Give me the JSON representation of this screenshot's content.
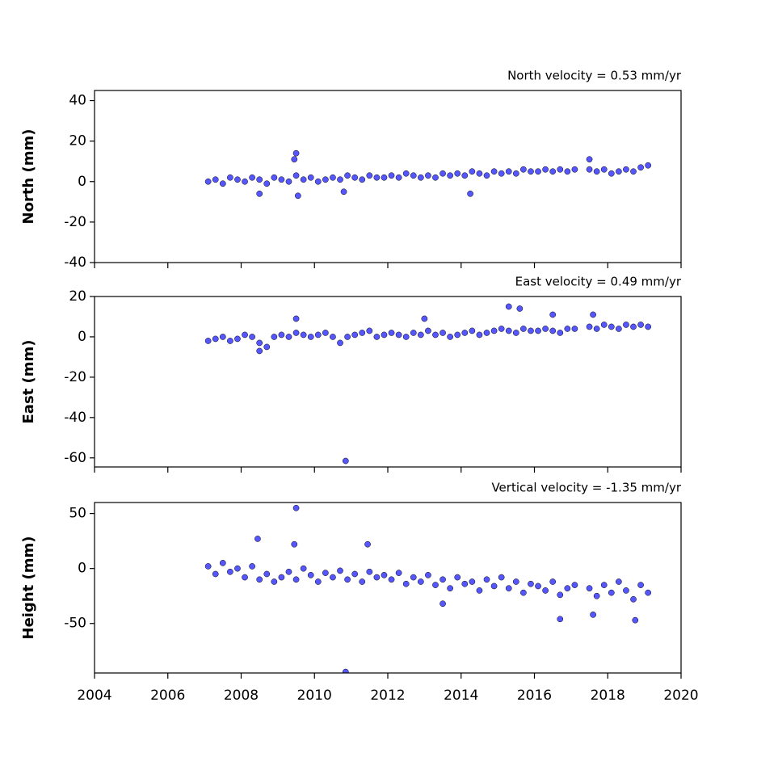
{
  "chart_data": [
    {
      "type": "scatter",
      "annotation": "North velocity = 0.53 mm/yr",
      "y_label": "North (mm)",
      "color": "#4d4dff",
      "x": [
        2007.1,
        2007.3,
        2007.5,
        2007.7,
        2007.9,
        2008.1,
        2008.3,
        2008.5,
        2008.7,
        2008.9,
        2009.1,
        2009.3,
        2009.5,
        2009.7,
        2009.9,
        2010.1,
        2010.3,
        2010.5,
        2010.7,
        2010.9,
        2011.1,
        2011.3,
        2011.5,
        2011.7,
        2011.9,
        2012.1,
        2012.3,
        2012.5,
        2012.7,
        2012.9,
        2013.1,
        2013.3,
        2013.5,
        2013.7,
        2013.9,
        2014.1,
        2014.3,
        2014.5,
        2014.7,
        2014.9,
        2015.1,
        2015.3,
        2015.5,
        2015.7,
        2015.9,
        2016.1,
        2016.3,
        2016.5,
        2016.7,
        2016.9,
        2017.1,
        2017.5,
        2017.7,
        2017.9,
        2018.1,
        2018.3,
        2018.5,
        2018.7,
        2018.9,
        2019.1,
        2009.5,
        2009.45,
        2009.55,
        2008.5,
        2014.25,
        2010.8,
        2017.5
      ],
      "values": [
        0,
        1,
        -1,
        2,
        1,
        0,
        2,
        1,
        -1,
        2,
        1,
        0,
        3,
        1,
        2,
        0,
        1,
        2,
        1,
        3,
        2,
        1,
        3,
        2,
        2,
        3,
        2,
        4,
        3,
        2,
        3,
        2,
        4,
        3,
        4,
        3,
        5,
        4,
        3,
        5,
        4,
        5,
        4,
        6,
        5,
        5,
        6,
        5,
        6,
        5,
        6,
        6,
        5,
        6,
        4,
        5,
        6,
        5,
        7,
        8,
        14,
        11,
        -7,
        -6,
        -6,
        -5,
        11
      ],
      "xlim": [
        2004,
        2020
      ],
      "xticks": [
        2004,
        2006,
        2008,
        2010,
        2012,
        2014,
        2016,
        2018,
        2020
      ],
      "ylim": [
        -40,
        45
      ],
      "yticks": [
        -40,
        -20,
        0,
        20,
        40
      ]
    },
    {
      "type": "scatter",
      "annotation": "East velocity = 0.49 mm/yr",
      "y_label": "East (mm)",
      "color": "#4d4dff",
      "x": [
        2007.1,
        2007.3,
        2007.5,
        2007.7,
        2007.9,
        2008.1,
        2008.3,
        2008.5,
        2008.7,
        2008.9,
        2009.1,
        2009.3,
        2009.5,
        2009.7,
        2009.9,
        2010.1,
        2010.3,
        2010.5,
        2010.7,
        2010.9,
        2011.1,
        2011.3,
        2011.5,
        2011.7,
        2011.9,
        2012.1,
        2012.3,
        2012.5,
        2012.7,
        2012.9,
        2013.1,
        2013.3,
        2013.5,
        2013.7,
        2013.9,
        2014.1,
        2014.3,
        2014.5,
        2014.7,
        2014.9,
        2015.1,
        2015.3,
        2015.5,
        2015.7,
        2015.9,
        2016.1,
        2016.3,
        2016.5,
        2016.7,
        2016.9,
        2017.1,
        2017.5,
        2017.7,
        2017.9,
        2018.1,
        2018.3,
        2018.5,
        2018.7,
        2018.9,
        2019.1,
        2009.5,
        2013.0,
        2015.3,
        2015.6,
        2016.5,
        2017.6,
        2010.85,
        2008.5
      ],
      "values": [
        -2,
        -1,
        0,
        -2,
        -1,
        1,
        0,
        -3,
        -5,
        0,
        1,
        0,
        2,
        1,
        0,
        1,
        2,
        0,
        -3,
        0,
        1,
        2,
        3,
        0,
        1,
        2,
        1,
        0,
        2,
        1,
        3,
        1,
        2,
        0,
        1,
        2,
        3,
        1,
        2,
        3,
        4,
        3,
        2,
        4,
        3,
        3,
        4,
        3,
        2,
        4,
        4,
        5,
        4,
        6,
        5,
        4,
        6,
        5,
        6,
        5,
        9,
        9,
        15,
        14,
        11,
        11,
        -61.5,
        -7
      ],
      "xlim": [
        2004,
        2020
      ],
      "xticks": [
        2004,
        2006,
        2008,
        2010,
        2012,
        2014,
        2016,
        2018,
        2020
      ],
      "ylim": [
        -64.5,
        20
      ],
      "yticks": [
        -60,
        -40,
        -20,
        0,
        20
      ]
    },
    {
      "type": "scatter",
      "annotation": "Vertical velocity = -1.35 mm/yr",
      "y_label": "Height (mm)",
      "color": "#4d4dff",
      "x": [
        2007.1,
        2007.3,
        2007.5,
        2007.7,
        2007.9,
        2008.1,
        2008.3,
        2008.5,
        2008.7,
        2008.9,
        2009.1,
        2009.3,
        2009.5,
        2009.7,
        2009.9,
        2010.1,
        2010.3,
        2010.5,
        2010.7,
        2010.9,
        2011.1,
        2011.3,
        2011.5,
        2011.7,
        2011.9,
        2012.1,
        2012.3,
        2012.5,
        2012.7,
        2012.9,
        2013.1,
        2013.3,
        2013.5,
        2013.7,
        2013.9,
        2014.1,
        2014.3,
        2014.5,
        2014.7,
        2014.9,
        2015.1,
        2015.3,
        2015.5,
        2015.7,
        2015.9,
        2016.1,
        2016.3,
        2016.5,
        2016.7,
        2016.9,
        2017.1,
        2017.5,
        2017.7,
        2017.9,
        2018.1,
        2018.3,
        2018.5,
        2018.7,
        2018.9,
        2019.1,
        2008.45,
        2009.5,
        2009.45,
        2011.45,
        2010.85,
        2016.7,
        2018.75,
        2017.6,
        2013.5
      ],
      "values": [
        2,
        -5,
        5,
        -3,
        0,
        -8,
        2,
        -10,
        -5,
        -12,
        -8,
        -3,
        -10,
        0,
        -6,
        -12,
        -4,
        -8,
        -2,
        -10,
        -5,
        -12,
        -3,
        -8,
        -6,
        -10,
        -4,
        -14,
        -8,
        -12,
        -6,
        -15,
        -10,
        -18,
        -8,
        -14,
        -12,
        -20,
        -10,
        -16,
        -8,
        -18,
        -12,
        -22,
        -14,
        -16,
        -20,
        -12,
        -24,
        -18,
        -15,
        -18,
        -25,
        -15,
        -22,
        -12,
        -20,
        -28,
        -15,
        -22,
        27,
        55,
        22,
        22,
        -94,
        -46,
        -47,
        -42,
        -32
      ],
      "xlim": [
        2004,
        2020
      ],
      "xticks": [
        2004,
        2006,
        2008,
        2010,
        2012,
        2014,
        2016,
        2018,
        2020
      ],
      "ylim": [
        -95,
        60
      ],
      "yticks": [
        -50,
        0,
        50
      ]
    }
  ]
}
